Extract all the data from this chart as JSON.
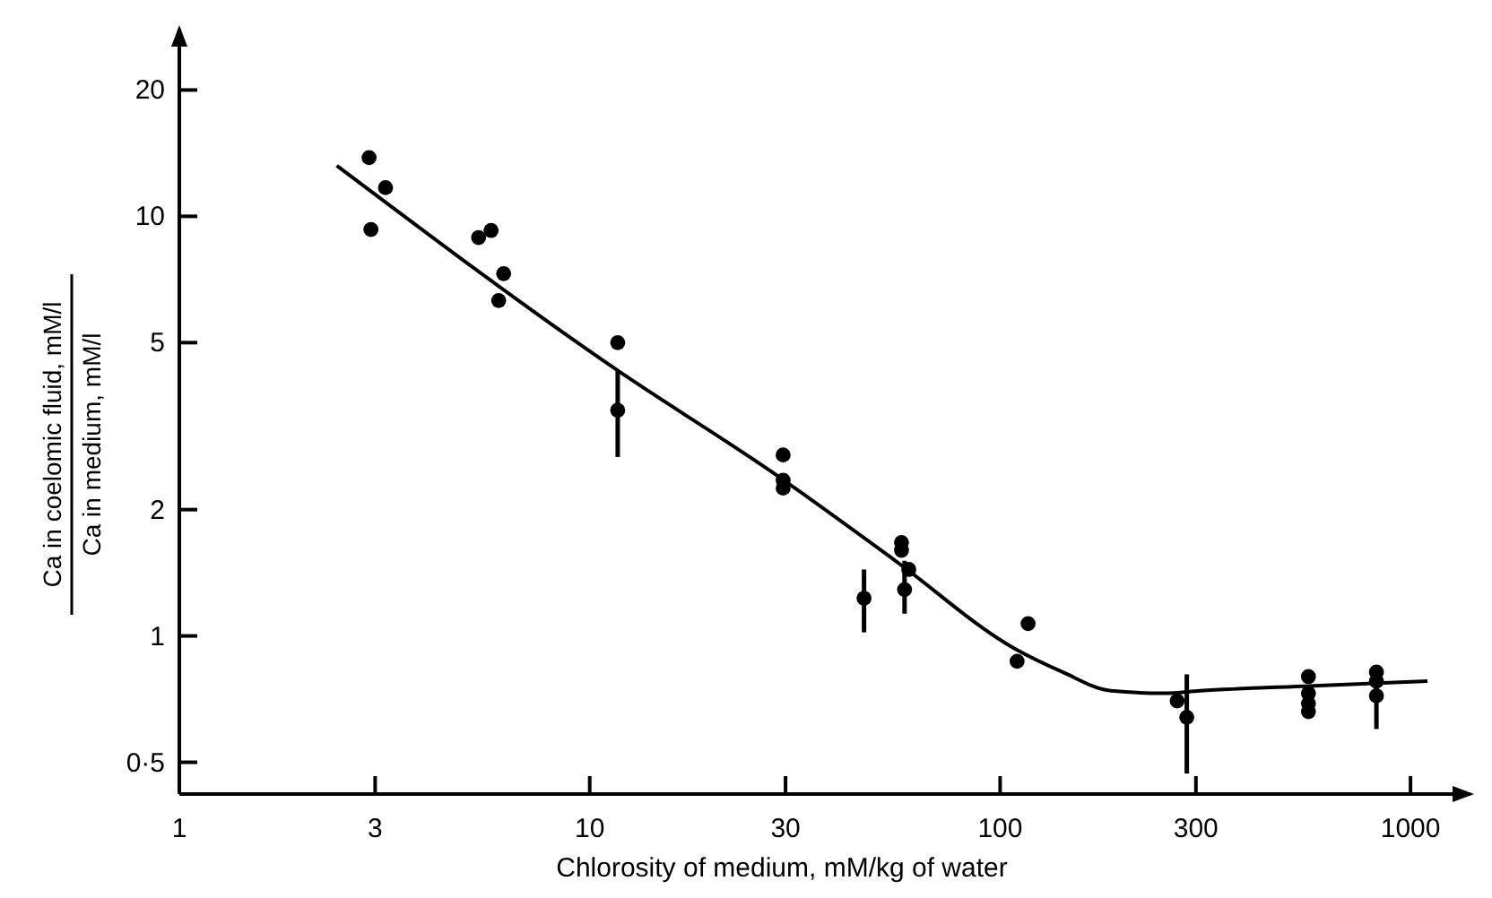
{
  "chart_data": {
    "type": "scatter",
    "xlabel": "Chlorosity of medium, mM/kg of water",
    "ylabel": "Ca in coelomic fluid, mM/l\nCa in medium, mM/l",
    "log": "xy",
    "xlim": [
      1,
      1400
    ],
    "xticks": [
      1,
      3,
      10,
      30,
      100,
      300,
      1000
    ],
    "ylim": [
      0.42,
      28
    ],
    "yticks": [
      {
        "value": 0.5,
        "label": "0·5"
      },
      1,
      2,
      5,
      10,
      20
    ],
    "grid": false,
    "series": [
      {
        "color": "#000000",
        "marker": "circle",
        "x": [
          2.9,
          3.18,
          2.93,
          5.36,
          5.75,
          6.17,
          6.0,
          11.7,
          11.7,
          29.6,
          29.6,
          29.6,
          46.6,
          57.5,
          57.5,
          59.9,
          58.5,
          110,
          117,
          270,
          285,
          564,
          564,
          564,
          564,
          826,
          826,
          826
        ],
        "values": [
          13.8,
          11.7,
          9.3,
          8.9,
          9.25,
          7.3,
          6.3,
          5.0,
          3.45,
          2.7,
          2.35,
          2.25,
          1.23,
          1.67,
          1.6,
          1.44,
          1.29,
          0.87,
          1.07,
          0.7,
          0.64,
          0.8,
          0.73,
          0.69,
          0.66,
          0.82,
          0.78,
          0.72
        ],
        "errors": [
          null,
          null,
          null,
          null,
          null,
          null,
          null,
          null,
          [
            2.67,
            4.29
          ],
          null,
          null,
          null,
          [
            1.02,
            1.44
          ],
          null,
          null,
          null,
          [
            1.13,
            1.51
          ],
          null,
          null,
          null,
          [
            0.47,
            0.81
          ],
          null,
          null,
          null,
          null,
          null,
          [
            0.6,
            0.85
          ],
          null
        ]
      },
      {
        "type": "line",
        "color": "#000000",
        "marker": "none",
        "line_style": "solid",
        "x": [
          2.42,
          11.7,
          27.6,
          55.6,
          109,
          142,
          186,
          251,
          307,
          565,
          1100
        ],
        "values": [
          13.2,
          4.29,
          2.47,
          1.51,
          0.93,
          0.82,
          0.74,
          0.73,
          0.74,
          0.76,
          0.78
        ]
      }
    ]
  }
}
